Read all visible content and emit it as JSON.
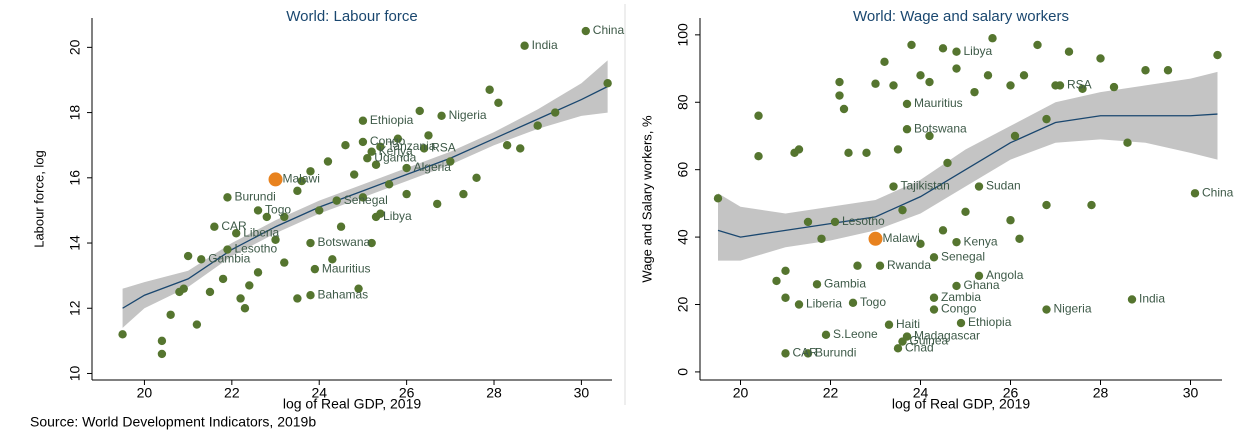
{
  "source": "Source: World Development Indicators, 2019b",
  "chart_data": [
    {
      "type": "scatter",
      "title": "World: Labour force",
      "xlabel": "log of Real GDP, 2019",
      "ylabel": "Labour force, log",
      "xlim": [
        18.8,
        30.7
      ],
      "ylim": [
        9.8,
        20.9
      ],
      "xticks": [
        20,
        22,
        24,
        26,
        28,
        30
      ],
      "yticks": [
        10,
        12,
        14,
        16,
        18,
        20
      ],
      "color": "#55752f",
      "highlight_color": "#e8821e",
      "highlight_index": 10,
      "x": [
        30.1,
        28.7,
        26.8,
        25.0,
        26.4,
        25.2,
        25.0,
        25.4,
        25.1,
        26.0,
        23.0,
        21.9,
        24.4,
        22.6,
        25.3,
        21.6,
        22.1,
        23.8,
        21.9,
        21.3,
        23.9,
        23.8,
        19.5,
        20.4,
        20.4,
        20.6,
        20.8,
        20.9,
        21.0,
        21.2,
        21.5,
        21.8,
        22.2,
        22.3,
        22.4,
        22.6,
        23.0,
        23.2,
        23.2,
        23.5,
        23.6,
        23.8,
        24.0,
        24.2,
        24.5,
        24.6,
        24.8,
        25.0,
        25.3,
        25.4,
        25.6,
        25.8,
        26.0,
        26.3,
        26.5,
        26.7,
        27.0,
        27.3,
        27.6,
        27.9,
        28.1,
        28.3,
        28.6,
        29.0,
        29.4,
        30.6,
        24.9,
        25.2,
        23.5,
        22.8,
        24.3
      ],
      "y": [
        20.5,
        20.05,
        17.9,
        17.75,
        16.9,
        16.8,
        17.1,
        16.95,
        16.6,
        16.3,
        15.95,
        15.4,
        15.3,
        15.0,
        14.8,
        14.5,
        14.3,
        14.0,
        13.8,
        13.5,
        13.2,
        12.4,
        11.2,
        11.0,
        10.6,
        11.8,
        12.5,
        12.6,
        13.6,
        11.5,
        12.5,
        12.9,
        12.3,
        12.0,
        12.7,
        13.1,
        14.1,
        13.4,
        14.8,
        15.6,
        15.9,
        16.2,
        15.0,
        16.5,
        14.5,
        17.0,
        16.1,
        15.4,
        16.4,
        14.9,
        15.8,
        17.2,
        15.5,
        18.05,
        17.3,
        15.2,
        16.5,
        15.5,
        16.0,
        18.7,
        18.3,
        17.0,
        16.9,
        17.6,
        18.0,
        18.9,
        12.6,
        14.0,
        12.3,
        14.8,
        13.5
      ],
      "labels": [
        "China",
        "India",
        "Nigeria",
        "Ethiopia",
        "RSA",
        "Kenya",
        "Congo",
        "Tanzania",
        "Uganda",
        "Algeria",
        "Malawi",
        "Burundi",
        "Senegal",
        "Togo",
        "Libya",
        "CAR",
        "Liberia",
        "Botswana",
        "Lesotho",
        "Gambia",
        "Mauritius",
        "Bahamas",
        null,
        null,
        null,
        null,
        null,
        null,
        null,
        null,
        null,
        null,
        null,
        null,
        null,
        null,
        null,
        null,
        null,
        null,
        null,
        null,
        null,
        null,
        null,
        null,
        null,
        null,
        null,
        null,
        null,
        null,
        null,
        null,
        null,
        null,
        null,
        null,
        null,
        null,
        null,
        null,
        null,
        null,
        null,
        null,
        null,
        null,
        null,
        null,
        null
      ],
      "fit": {
        "color": "#1a476f",
        "band_color": "#c4c4c4",
        "x": [
          19.5,
          20,
          21,
          22,
          23,
          24,
          25,
          26,
          27,
          28,
          29,
          30,
          30.6
        ],
        "y": [
          12.0,
          12.4,
          12.9,
          13.8,
          14.5,
          15.1,
          15.6,
          16.1,
          16.6,
          17.2,
          17.8,
          18.4,
          18.8
        ],
        "lower": [
          11.4,
          12.0,
          12.65,
          13.6,
          14.3,
          14.9,
          15.4,
          15.9,
          16.4,
          17.0,
          17.5,
          17.9,
          18.0
        ],
        "upper": [
          12.6,
          12.8,
          13.15,
          14.0,
          14.7,
          15.3,
          15.8,
          16.3,
          16.8,
          17.4,
          18.1,
          18.9,
          19.6
        ]
      }
    },
    {
      "type": "scatter",
      "title": "World: Wage and salary workers",
      "xlabel": "log of Real GDP, 2019",
      "ylabel": "Wage and Salary workers, %",
      "xlim": [
        19.1,
        30.7
      ],
      "ylim": [
        -2.4,
        105
      ],
      "xticks": [
        20,
        22,
        24,
        26,
        28,
        30
      ],
      "yticks": [
        0,
        20,
        40,
        60,
        80,
        100
      ],
      "color": "#55752f",
      "highlight_color": "#e8821e",
      "highlight_index": 3,
      "x": [
        30.1,
        28.7,
        26.8,
        23.0,
        24.8,
        23.7,
        23.7,
        23.4,
        25.3,
        22.1,
        24.8,
        24.3,
        23.1,
        25.3,
        24.8,
        21.7,
        22.5,
        21.3,
        24.3,
        24.3,
        23.3,
        23.7,
        21.9,
        23.6,
        23.5,
        21.5,
        21.0,
        24.9,
        27.1,
        19.5,
        20.4,
        20.4,
        20.8,
        21.0,
        21.0,
        21.2,
        21.3,
        21.5,
        21.8,
        22.2,
        22.2,
        22.3,
        22.4,
        22.8,
        23.0,
        23.2,
        23.4,
        23.8,
        24.0,
        24.2,
        24.5,
        24.8,
        25.2,
        25.6,
        25.5,
        26.0,
        26.1,
        26.3,
        26.6,
        26.8,
        27.0,
        27.3,
        27.6,
        27.8,
        28.0,
        28.3,
        28.6,
        29.0,
        29.5,
        30.6,
        24.6,
        24.2,
        23.5,
        25.0,
        26.0,
        26.2,
        26.8,
        24.5,
        23.6,
        22.6,
        24.0
      ],
      "y": [
        53,
        21.5,
        18.5,
        39.5,
        95,
        79.5,
        72,
        55,
        55,
        44.5,
        38.5,
        34,
        31.5,
        28.5,
        25.5,
        26,
        20.5,
        20,
        22,
        18.5,
        14,
        10.5,
        11,
        9,
        7,
        5.5,
        5.5,
        14.5,
        85,
        51.5,
        76,
        64,
        27,
        30,
        22,
        65,
        66,
        44.5,
        39.5,
        86,
        82,
        78,
        65,
        65,
        85.5,
        92,
        85,
        97,
        88,
        86,
        96,
        90,
        83,
        99,
        88,
        85,
        70,
        88,
        97,
        75,
        85,
        95,
        84,
        49.5,
        93,
        84.5,
        68,
        89.5,
        89.5,
        94,
        62,
        70,
        66,
        47.5,
        45,
        39.5,
        49.5,
        42,
        48,
        31.5,
        38
      ],
      "labels": [
        "China",
        "India",
        "Nigeria",
        "Malawi",
        "Libya",
        "Mauritius",
        "Botswana",
        "Tajikistan",
        "Sudan",
        "Lesotho",
        "Kenya",
        "Senegal",
        "Rwanda",
        "Angola",
        "Ghana",
        "Gambia",
        "Togo",
        "Liberia",
        "Zambia",
        "Congo",
        "Haiti",
        "Madagascar",
        "S.Leone",
        "Guinea",
        "Chad",
        "Burundi",
        "CAR",
        "Ethiopia",
        "RSA",
        null,
        null,
        null,
        null,
        null,
        null,
        null,
        null,
        null,
        null,
        null,
        null,
        null,
        null,
        null,
        null,
        null,
        null,
        null,
        null,
        null,
        null,
        null,
        null,
        null,
        null,
        null,
        null,
        null,
        null,
        null,
        null,
        null,
        null,
        null,
        null,
        null,
        null,
        null,
        null,
        null,
        null,
        null,
        null,
        null,
        null,
        null,
        null,
        null,
        null,
        null
      ],
      "fit": {
        "color": "#1a476f",
        "band_color": "#c4c4c4",
        "x": [
          19.5,
          20,
          21,
          22,
          23,
          24,
          25,
          26,
          27,
          28,
          29,
          30,
          30.6
        ],
        "y": [
          42,
          40,
          42,
          44,
          46,
          52,
          60,
          68,
          74,
          76,
          76,
          76,
          76.5
        ],
        "lower": [
          33,
          33,
          37,
          39,
          42,
          47,
          55,
          63,
          68,
          69,
          68,
          65,
          63
        ],
        "upper": [
          53,
          49,
          47,
          49,
          51,
          57,
          66,
          73,
          80,
          83,
          85,
          87,
          89
        ]
      }
    }
  ]
}
